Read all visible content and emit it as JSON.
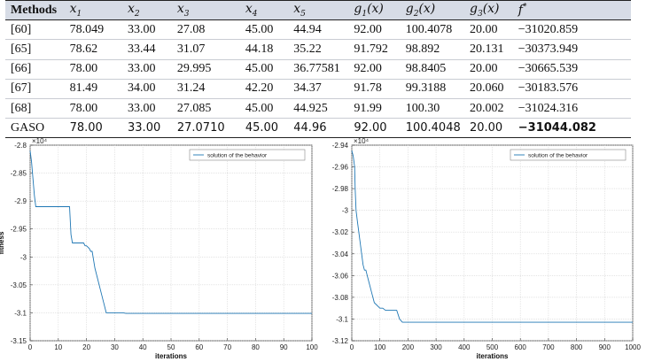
{
  "table": {
    "headers": [
      {
        "text": "Methods",
        "sub": ""
      },
      {
        "text": "x",
        "sub": "1"
      },
      {
        "text": "x",
        "sub": "2"
      },
      {
        "text": "x",
        "sub": "3"
      },
      {
        "text": "x",
        "sub": "4"
      },
      {
        "text": "x",
        "sub": "5"
      },
      {
        "text": "g",
        "sub": "1",
        "suffix": "(x)"
      },
      {
        "text": "g",
        "sub": "2",
        "suffix": "(x)"
      },
      {
        "text": "g",
        "sub": "3",
        "suffix": "(x)"
      },
      {
        "text": "f",
        "sup": "*"
      }
    ],
    "rows": [
      [
        "[60]",
        "78.049",
        "33.00",
        "27.08",
        "45.00",
        "44.94",
        "92.00",
        "100.4078",
        "20.00",
        "−31020.859"
      ],
      [
        "[65]",
        "78.62",
        "33.44",
        "31.07",
        "44.18",
        "35.22",
        "91.792",
        "98.892",
        "20.131",
        "−30373.949"
      ],
      [
        "[66]",
        "78.00",
        "33.00",
        "29.995",
        "45.00",
        "36.77581",
        "92.00",
        "98.8405",
        "20.00",
        "−30665.539"
      ],
      [
        "[67]",
        "81.49",
        "34.00",
        "31.24",
        "42.20",
        "34.37",
        "91.78",
        "99.3188",
        "20.060",
        "−30183.576"
      ],
      [
        "[68]",
        "78.00",
        "33.00",
        "27.085",
        "45.00",
        "44.925",
        "91.99",
        "100.30",
        "20.002",
        "−31024.316"
      ],
      [
        "GASO",
        "78.00",
        "33.00",
        "27.0710",
        "45.00",
        "44.96",
        "92.00",
        "100.4048",
        "20.00",
        "−31044.082"
      ]
    ]
  },
  "chart_data": [
    {
      "type": "line",
      "xlabel": "iterations",
      "ylabel": "fitness",
      "exponent_label": "×10⁴",
      "xlim": [
        0,
        100
      ],
      "ylim": [
        -3.15,
        -2.8
      ],
      "xticks": [
        "0",
        "10",
        "20",
        "30",
        "40",
        "50",
        "60",
        "70",
        "80",
        "90",
        "100"
      ],
      "yticks": [
        "-2.8",
        "-2.85",
        "-2.9",
        "-2.95",
        "-3",
        "-3.05",
        "-3.1",
        "-3.15"
      ],
      "grid": true,
      "legend_position": "top-right",
      "series": [
        {
          "name": "solution of the behavior",
          "color": "#1f77b4",
          "x": [
            0,
            0.5,
            1,
            1.5,
            2,
            14,
            14.5,
            15,
            19,
            19.5,
            20,
            21,
            21.5,
            22,
            23,
            24,
            25,
            26,
            27,
            28,
            33,
            34,
            100
          ],
          "y": [
            -2.81,
            -2.83,
            -2.86,
            -2.89,
            -2.91,
            -2.91,
            -2.96,
            -2.975,
            -2.975,
            -2.98,
            -2.98,
            -2.985,
            -2.99,
            -2.99,
            -3.02,
            -3.04,
            -3.06,
            -3.08,
            -3.1,
            -3.1,
            -3.1,
            -3.101,
            -3.101
          ]
        }
      ]
    },
    {
      "type": "line",
      "xlabel": "iterations",
      "ylabel": "",
      "exponent_label": "×10⁴",
      "xlim": [
        0,
        1000
      ],
      "ylim": [
        -3.12,
        -2.94
      ],
      "xticks": [
        "0",
        "100",
        "200",
        "300",
        "400",
        "500",
        "600",
        "700",
        "800",
        "900",
        "1000"
      ],
      "yticks": [
        "-2.94",
        "-2.96",
        "-2.98",
        "-3",
        "-3.02",
        "-3.04",
        "-3.06",
        "-3.08",
        "-3.1",
        "-3.12"
      ],
      "grid": true,
      "legend_position": "top-right",
      "series": [
        {
          "name": "solution of the behavior",
          "color": "#1f77b4",
          "x": [
            0,
            5,
            10,
            12,
            15,
            20,
            25,
            30,
            35,
            40,
            45,
            50,
            55,
            60,
            65,
            70,
            75,
            80,
            100,
            110,
            120,
            160,
            170,
            180,
            190,
            1000
          ],
          "y": [
            -2.945,
            -2.95,
            -2.96,
            -2.98,
            -3.0,
            -3.01,
            -3.02,
            -3.03,
            -3.04,
            -3.05,
            -3.055,
            -3.055,
            -3.06,
            -3.065,
            -3.07,
            -3.075,
            -3.08,
            -3.085,
            -3.09,
            -3.09,
            -3.092,
            -3.092,
            -3.1,
            -3.103,
            -3.103,
            -3.103
          ]
        }
      ]
    }
  ]
}
